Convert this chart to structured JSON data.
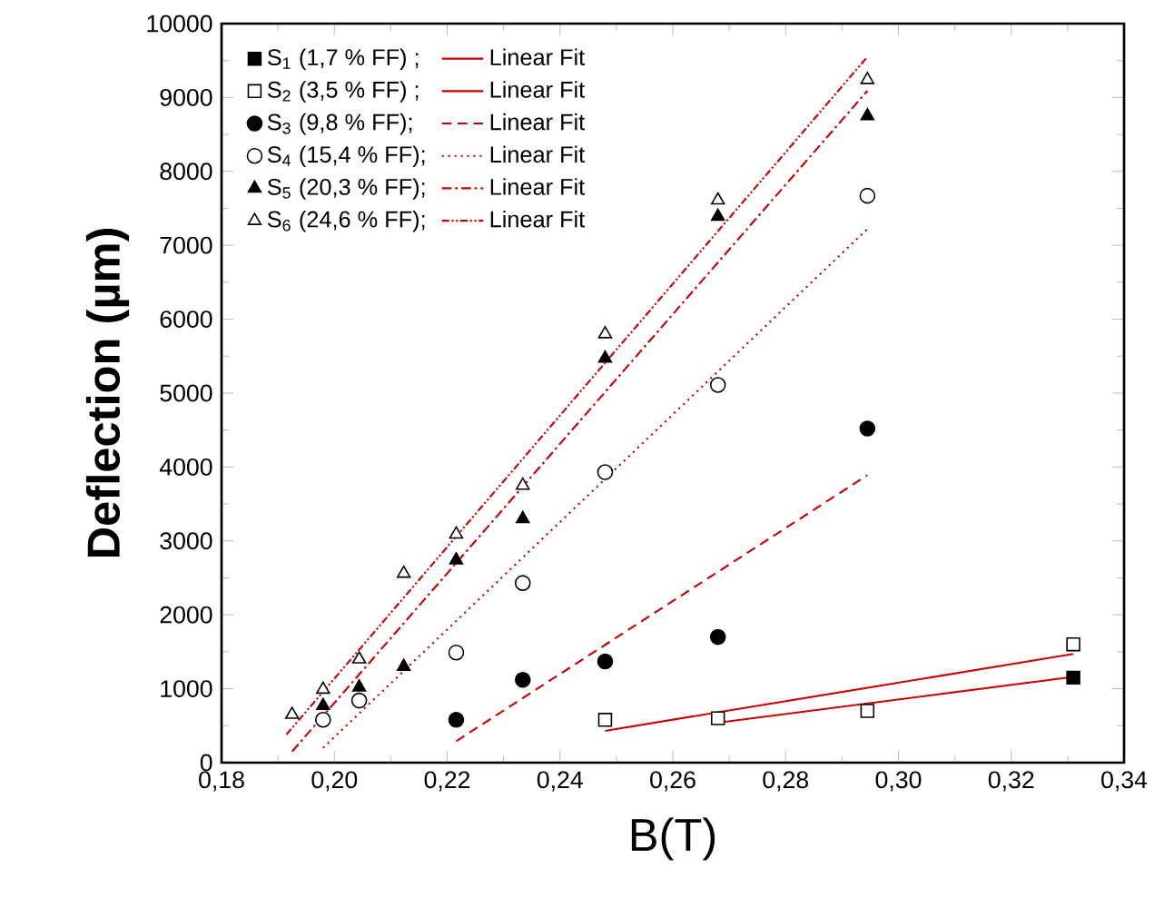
{
  "chart_data": {
    "type": "scatter",
    "xlabel": "B(T)",
    "ylabel": "**Deflection (µm)**",
    "xlim": [
      0.18,
      0.34
    ],
    "ylim": [
      0,
      10000
    ],
    "xticks": [
      {
        "value": 0.18,
        "label": "0,18"
      },
      {
        "value": 0.2,
        "label": "0,20"
      },
      {
        "value": 0.22,
        "label": "0,22"
      },
      {
        "value": 0.24,
        "label": "0,24"
      },
      {
        "value": 0.26,
        "label": "0,26"
      },
      {
        "value": 0.28,
        "label": "0,28"
      },
      {
        "value": 0.3,
        "label": "0,30"
      },
      {
        "value": 0.32,
        "label": "0,32"
      },
      {
        "value": 0.34,
        "label": "0,34"
      }
    ],
    "yticks": [
      0,
      1000,
      2000,
      3000,
      4000,
      5000,
      6000,
      7000,
      8000,
      9000,
      10000
    ],
    "grid": false,
    "legend": "top left",
    "series": [
      {
        "name": "S$_{1}$ (1,7 % FF) ;",
        "marker": "square",
        "color": "#000000",
        "x": [
          0.331
        ],
        "values": [
          1150
        ]
      },
      {
        "name": "Linear Fit",
        "type": "line",
        "marker": "none",
        "line_style": "solid",
        "color": "#cc0000",
        "x": [
          0.268,
          0.331
        ],
        "values": [
          540,
          1160
        ]
      },
      {
        "name": "S$_{2}$ (3,5 % FF) ;",
        "marker": "square",
        "color": "#ffffff",
        "x": [
          0.248,
          0.268,
          0.2945,
          0.331
        ],
        "values": [
          580,
          600,
          700,
          1600
        ]
      },
      {
        "name": "Linear Fit",
        "type": "line",
        "marker": "none",
        "line_style": "solid",
        "color": "#cc0000",
        "x": [
          0.248,
          0.331
        ],
        "values": [
          430,
          1470
        ]
      },
      {
        "name": "S$_{3}$ (9,8 % FF);",
        "marker": "circle",
        "color": "#000000",
        "x": [
          0.2216,
          0.2334,
          0.248,
          0.268,
          0.2945
        ],
        "values": [
          580,
          1120,
          1370,
          1700,
          4520
        ]
      },
      {
        "name": "Linear Fit",
        "type": "line",
        "marker": "none",
        "line_style": "dashed",
        "color": "#cc0000",
        "x": [
          0.2216,
          0.2945
        ],
        "values": [
          290,
          3890
        ]
      },
      {
        "name": "S$_{4}$ (15,4 % FF);",
        "marker": "circle",
        "color": "#ffffff",
        "x": [
          0.198,
          0.2044,
          0.2216,
          0.2334,
          0.248,
          0.268,
          0.2945
        ],
        "values": [
          580,
          840,
          1490,
          2430,
          3930,
          5110,
          7670
        ]
      },
      {
        "name": "Linear Fit",
        "type": "line",
        "marker": "none",
        "line_style": "dotted",
        "color": "#cc0000",
        "x": [
          0.198,
          0.2945
        ],
        "values": [
          200,
          7220
        ]
      },
      {
        "name": "S$_{5}$ (20,3 % FF);",
        "marker": "triangle",
        "color": "#000000",
        "x": [
          0.198,
          0.2044,
          0.2123,
          0.2216,
          0.2334,
          0.248,
          0.268,
          0.2945
        ],
        "values": [
          770,
          1020,
          1300,
          2740,
          3300,
          5470,
          7390,
          8750
        ]
      },
      {
        "name": "Linear Fit",
        "type": "line",
        "marker": "none",
        "line_style": "dashdot",
        "color": "#cc0000",
        "x": [
          0.1925,
          0.2945
        ],
        "values": [
          150,
          9090
        ]
      },
      {
        "name": "S$_{6}$ (24,6 % FF);",
        "marker": "triangle",
        "color": "#ffffff",
        "x": [
          0.1925,
          0.198,
          0.2044,
          0.2123,
          0.2216,
          0.2334,
          0.248,
          0.268,
          0.2945
        ],
        "values": [
          650,
          990,
          1400,
          2560,
          3090,
          3750,
          5800,
          7610,
          9240
        ]
      },
      {
        "name": "Linear Fit",
        "type": "line",
        "marker": "none",
        "line_style": "dashdotdot",
        "color": "#cc0000",
        "x": [
          0.1915,
          0.2945
        ],
        "values": [
          380,
          9550
        ]
      }
    ]
  }
}
